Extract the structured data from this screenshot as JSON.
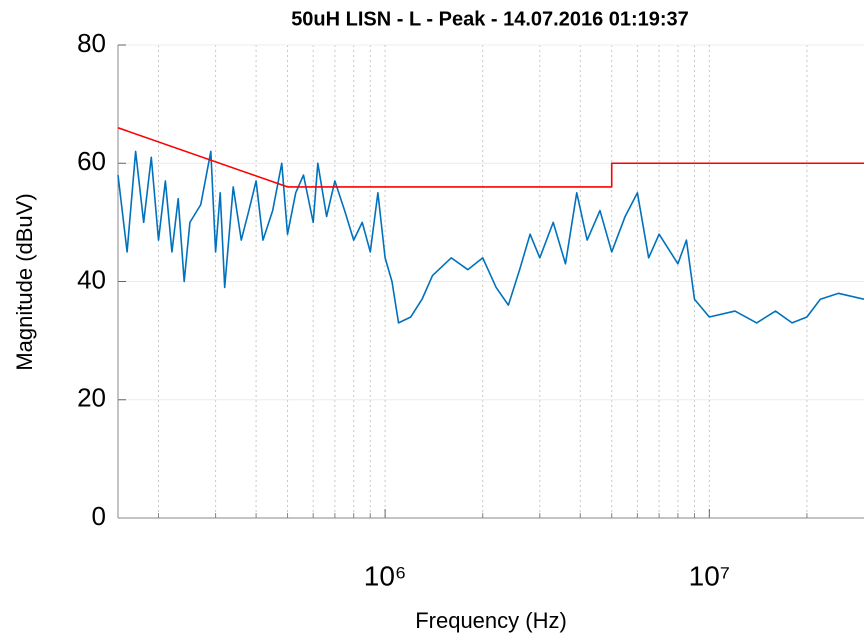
{
  "chart_data": {
    "type": "line",
    "title": "50uH LISN - L - Peak - 14.07.2016 01:19:37",
    "xlabel": "Frequency (Hz)",
    "ylabel": "Magnitude (dBuV)",
    "xscale": "log",
    "xlim": [
      150000,
      30000000
    ],
    "ylim": [
      0,
      80
    ],
    "xticks": [
      {
        "value": 1000000,
        "label": "10⁶"
      },
      {
        "value": 10000000,
        "label": "10⁷"
      }
    ],
    "yticks": [
      0,
      20,
      40,
      60,
      80
    ],
    "grid": true,
    "series": [
      {
        "color": "#0072bd",
        "x": [
          150000,
          160000,
          170000,
          180000,
          190000,
          200000,
          210000,
          220000,
          230000,
          240000,
          250000,
          270000,
          290000,
          300000,
          310000,
          320000,
          340000,
          360000,
          380000,
          400000,
          420000,
          450000,
          480000,
          500000,
          530000,
          560000,
          600000,
          620000,
          660000,
          700000,
          750000,
          800000,
          850000,
          900000,
          950000,
          1000000,
          1050000,
          1100000,
          1200000,
          1300000,
          1400000,
          1600000,
          1800000,
          2000000,
          2200000,
          2400000,
          2600000,
          2800000,
          3000000,
          3300000,
          3600000,
          3900000,
          4200000,
          4600000,
          5000000,
          5500000,
          6000000,
          6500000,
          7000000,
          8000000,
          8500000,
          9000000,
          10000000,
          12000000,
          14000000,
          16000000,
          18000000,
          20000000,
          22000000,
          25000000,
          30000000
        ],
        "values": [
          58,
          45,
          62,
          50,
          61,
          47,
          57,
          45,
          54,
          40,
          50,
          53,
          62,
          45,
          55,
          39,
          56,
          47,
          52,
          57,
          47,
          52,
          60,
          48,
          55,
          58,
          50,
          60,
          51,
          57,
          52,
          47,
          50,
          45,
          55,
          44,
          40,
          33,
          34,
          37,
          41,
          44,
          42,
          44,
          39,
          36,
          42,
          48,
          44,
          50,
          43,
          55,
          47,
          52,
          45,
          51,
          55,
          44,
          48,
          43,
          47,
          37,
          34,
          35,
          33,
          35,
          33,
          34,
          37,
          38,
          37
        ]
      },
      {
        "color": "#ff0000",
        "x": [
          150000,
          500000,
          5000000,
          5000000,
          30000000
        ],
        "values": [
          66,
          56,
          56,
          60,
          60
        ]
      }
    ]
  }
}
